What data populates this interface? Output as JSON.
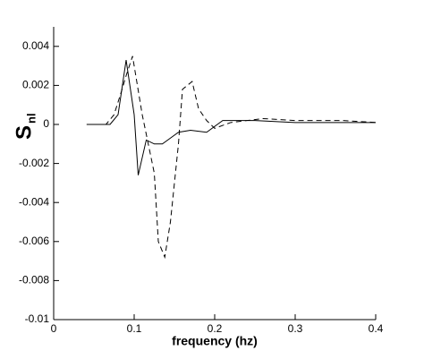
{
  "chart_data": {
    "type": "line",
    "xlabel": "frequency (hz)",
    "ylabel": "S",
    "ylabel_subscript": "nl",
    "xlim": [
      0,
      0.4
    ],
    "xticks": [
      0,
      0.1,
      0.2,
      0.3,
      0.4
    ],
    "ylim": [
      -0.01,
      0.005
    ],
    "yticks": [
      0.004,
      0.002,
      0,
      -0.002,
      -0.004,
      -0.006,
      -0.008,
      -0.01
    ],
    "series": [
      {
        "color": "#000000",
        "style": "solid",
        "x": [
          0.041,
          0.07,
          0.08,
          0.09,
          0.1,
          0.105,
          0.115,
          0.125,
          0.135,
          0.145,
          0.155,
          0.17,
          0.19,
          0.21,
          0.25,
          0.3,
          0.4
        ],
        "values": [
          0,
          0,
          0.0005,
          0.0033,
          0.0005,
          -0.0026,
          -0.0008,
          -0.001,
          -0.001,
          -0.0007,
          -0.0004,
          -0.0003,
          -0.0004,
          0.0002,
          0.0002,
          0.0001,
          0.0001
        ]
      },
      {
        "color": "#000000",
        "style": "dashed",
        "x": [
          0.041,
          0.065,
          0.075,
          0.085,
          0.09,
          0.098,
          0.11,
          0.115,
          0.125,
          0.13,
          0.138,
          0.145,
          0.155,
          0.16,
          0.172,
          0.18,
          0.19,
          0.2,
          0.22,
          0.26,
          0.3,
          0.36,
          0.4
        ],
        "values": [
          0,
          0,
          0.0005,
          0.0018,
          0.0025,
          0.0035,
          0.0005,
          -0.0005,
          -0.0025,
          -0.006,
          -0.0068,
          -0.005,
          -0.001,
          0.0018,
          0.0022,
          0.0008,
          0.0002,
          -0.0002,
          0.0001,
          0.0003,
          0.0002,
          0.0002,
          0.0001
        ]
      }
    ]
  }
}
